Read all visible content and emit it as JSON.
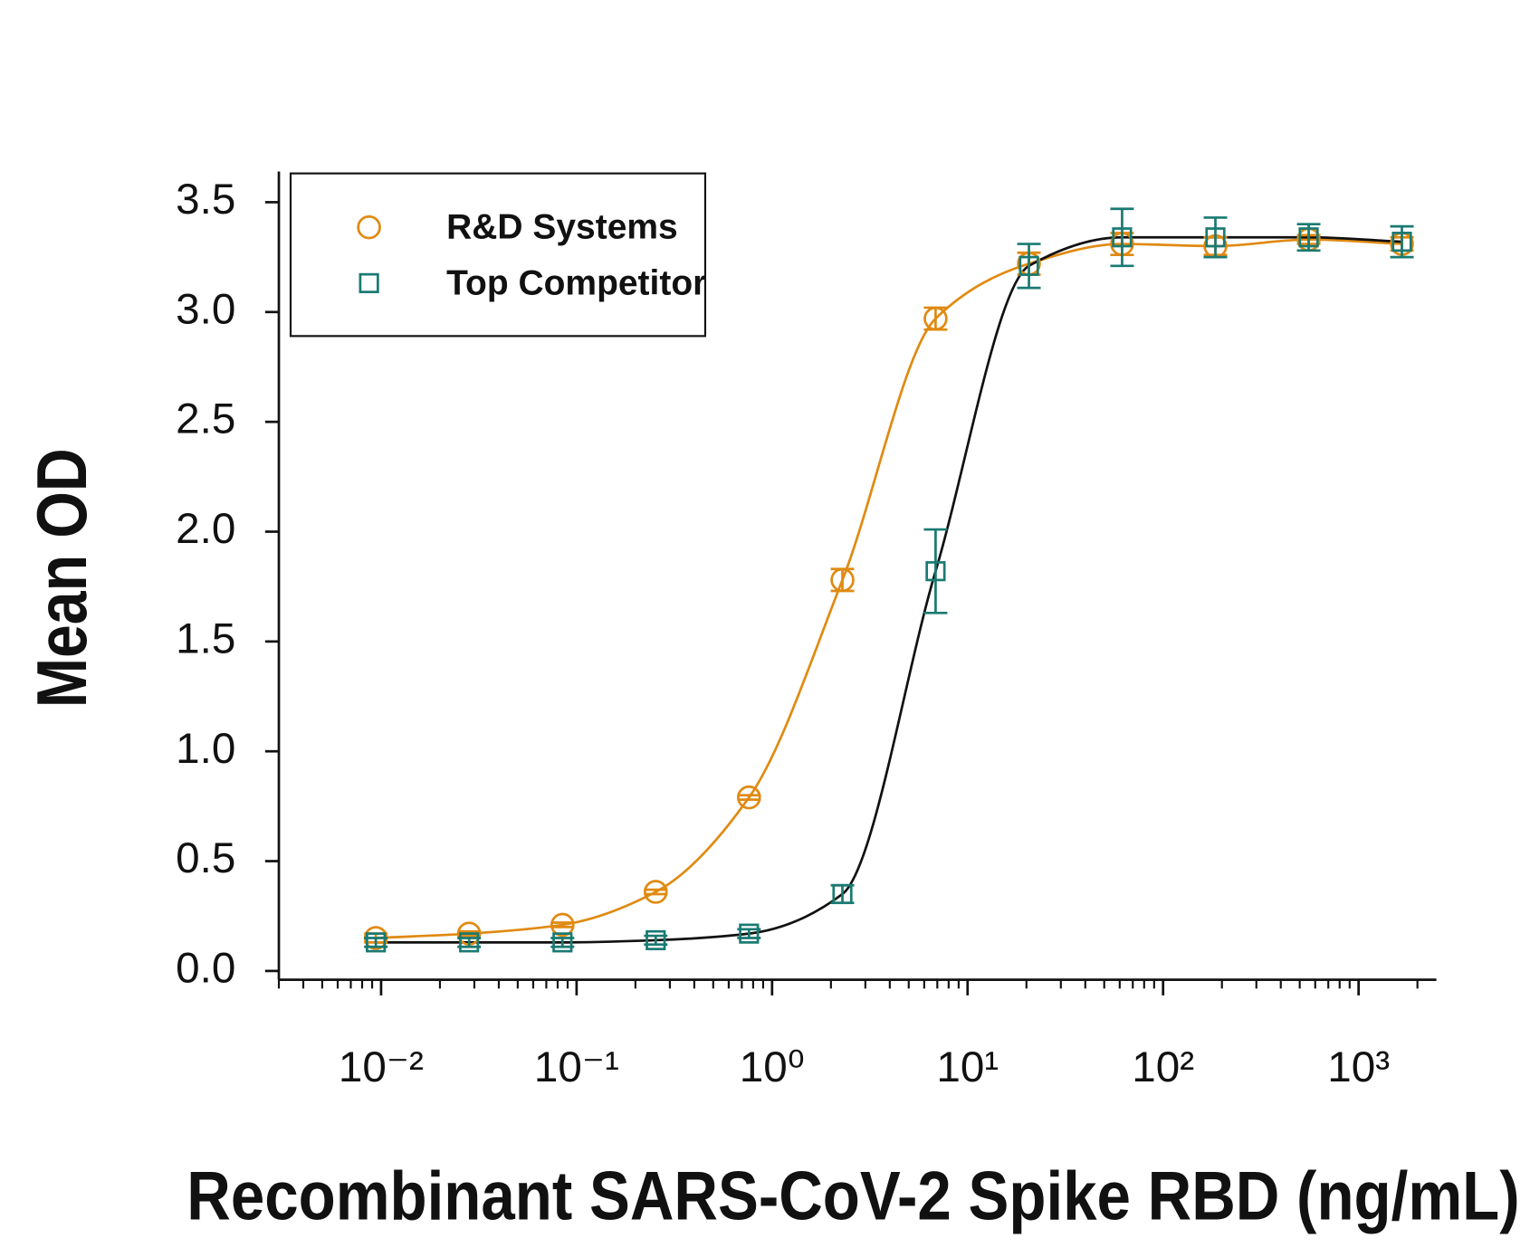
{
  "chart_data": {
    "type": "scatter",
    "x_label": "Recombinant SARS-CoV-2 Spike RBD (ng/mL)",
    "y_label": "Mean OD",
    "x_scale": "log",
    "xlim": [
      0.003,
      2500
    ],
    "ylim": [
      -0.04,
      3.64
    ],
    "xticks": [
      {
        "value": 0.01,
        "label": "10⁻²"
      },
      {
        "value": 0.1,
        "label": "10⁻¹"
      },
      {
        "value": 1,
        "label": "10⁰"
      },
      {
        "value": 10,
        "label": "10¹"
      },
      {
        "value": 100,
        "label": "10²"
      },
      {
        "value": 1000,
        "label": "10³"
      }
    ],
    "xticks_minor": [
      0.003,
      0.004,
      0.005,
      0.006,
      0.007,
      0.008,
      0.009,
      0.02,
      0.03,
      0.04,
      0.05,
      0.06,
      0.07,
      0.08,
      0.09,
      0.2,
      0.3,
      0.4,
      0.5,
      0.6,
      0.7,
      0.8,
      0.9,
      2,
      3,
      4,
      5,
      6,
      7,
      8,
      9,
      20,
      30,
      40,
      50,
      60,
      70,
      80,
      90,
      200,
      300,
      400,
      500,
      600,
      700,
      800,
      900,
      2000
    ],
    "yticks": [
      {
        "value": 0,
        "label": "0.0"
      },
      0.5,
      {
        "value": 1,
        "label": "1.0"
      },
      1.5,
      {
        "value": 2,
        "label": "2.0"
      },
      2.5,
      {
        "value": 3,
        "label": "3.0"
      },
      3.5
    ],
    "legend": "upper left",
    "x": [
      0.0094,
      0.0282,
      0.0847,
      0.254,
      0.762,
      2.29,
      6.86,
      20.6,
      61.7,
      185.2,
      555.6,
      1666
    ],
    "series": [
      {
        "name": "R&D Systems",
        "color": "#e08a12",
        "line_color": "#e08a12",
        "marker": "circle",
        "values": [
          0.15,
          0.17,
          0.21,
          0.36,
          0.79,
          1.78,
          2.97,
          3.22,
          3.31,
          3.3,
          3.33,
          3.31
        ],
        "errors": [
          0.02,
          0.01,
          0.01,
          0.01,
          0.01,
          0.05,
          0.05,
          0.05,
          0.05,
          0.04,
          0.02,
          0.03
        ]
      },
      {
        "name": "Top Competitor",
        "color": "#1a7a72",
        "line_color": "#111111",
        "marker": "square",
        "values": [
          0.13,
          0.13,
          0.13,
          0.14,
          0.17,
          0.35,
          1.82,
          3.21,
          3.34,
          3.34,
          3.34,
          3.32
        ],
        "errors": [
          0.02,
          0.02,
          0.02,
          0.02,
          0.02,
          0.04,
          0.19,
          0.1,
          0.13,
          0.09,
          0.06,
          0.07
        ]
      }
    ]
  }
}
